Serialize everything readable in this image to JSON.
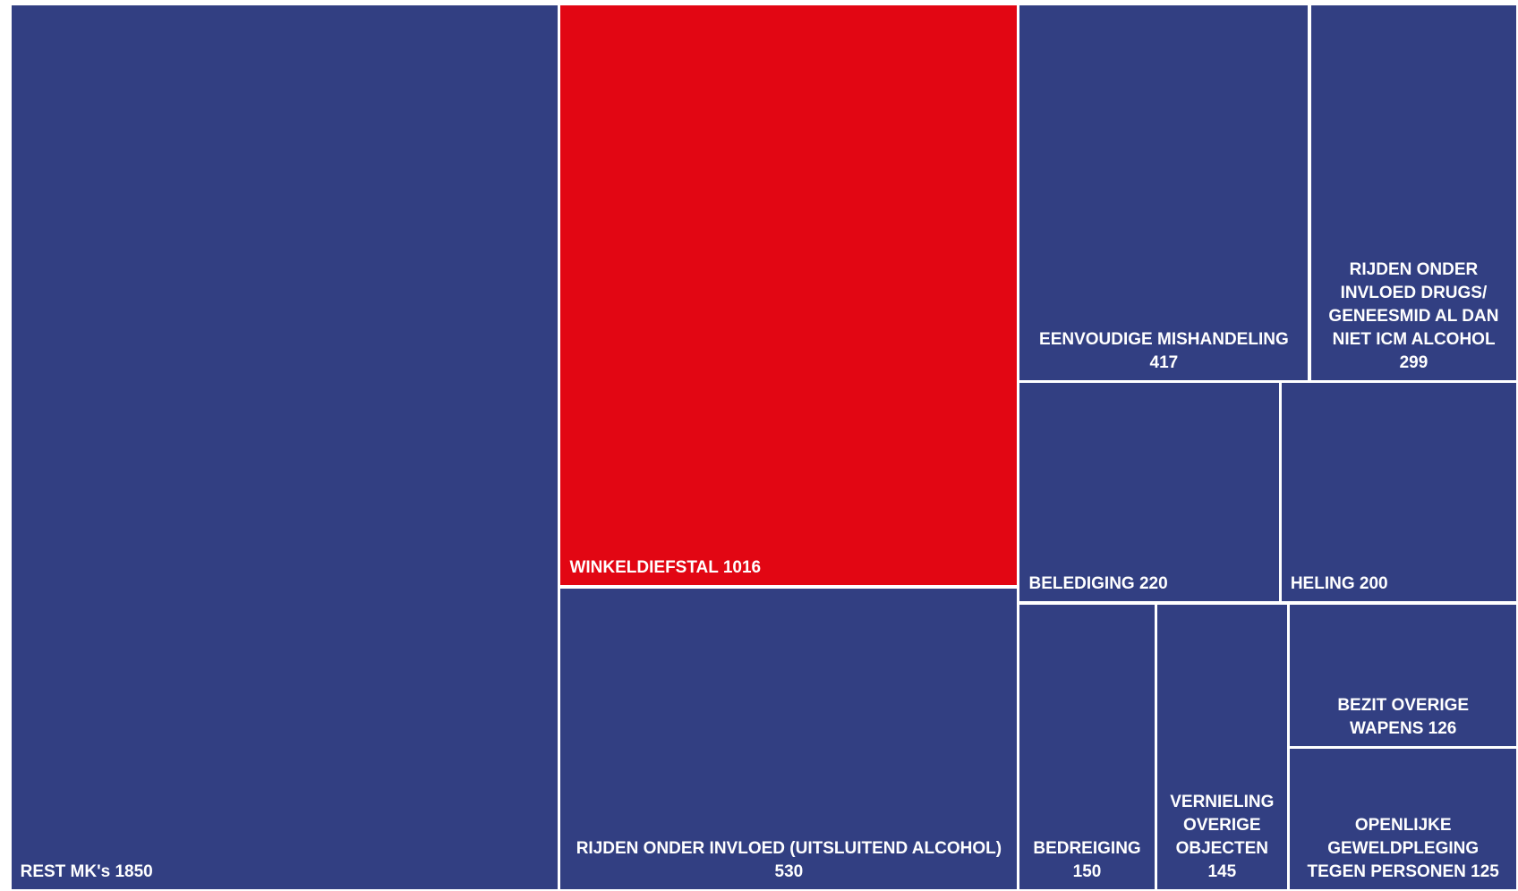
{
  "chart_data": {
    "type": "treemap",
    "categories": [
      "REST MK's",
      "WINKELDIEFSTAL",
      "RIJDEN ONDER INVLOED (UITSLUITEND ALCOHOL)",
      "EENVOUDIGE MISHANDELING",
      "RIJDEN ONDER INVLOED DRUGS/ GENEESMID AL DAN NIET ICM ALCOHOL",
      "BELEDIGING",
      "HELING",
      "BEDREIGING",
      "VERNIELING OVERIGE OBJECTEN",
      "BEZIT OVERIGE WAPENS",
      "OPENLIJKE GEWELDPLEGING TEGEN PERSONEN"
    ],
    "values": [
      1850,
      1016,
      530,
      417,
      299,
      220,
      200,
      150,
      145,
      126,
      125
    ],
    "colors": [
      "#323f82",
      "#e20613",
      "#323f82",
      "#323f82",
      "#323f82",
      "#323f82",
      "#323f82",
      "#323f82",
      "#323f82",
      "#323f82",
      "#323f82"
    ]
  }
}
